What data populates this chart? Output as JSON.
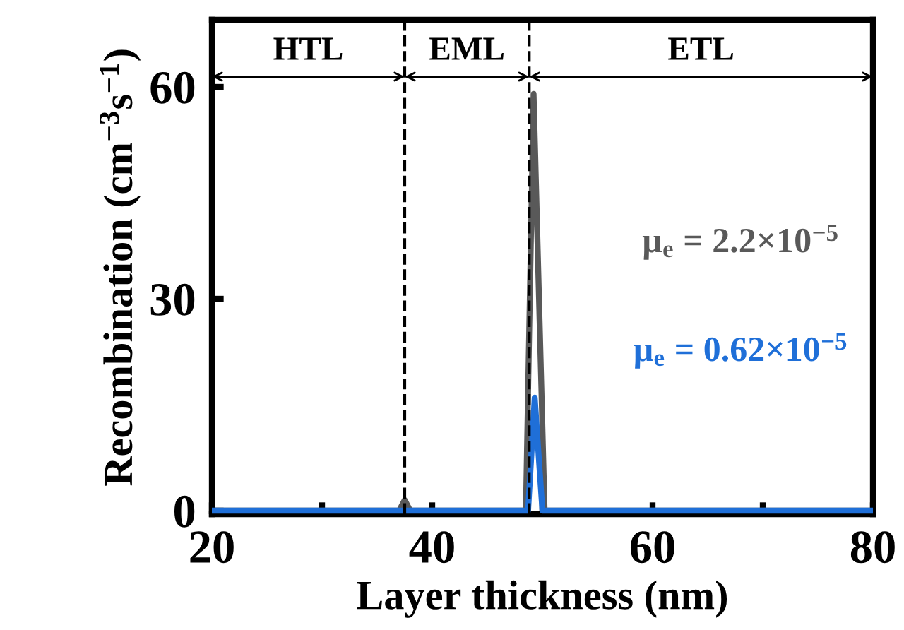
{
  "chart_data": {
    "type": "line",
    "xlabel": "Layer thickness (nm)",
    "ylabel": "Recombination (cm$^{−3}$s$^{−1}$)",
    "xlim": [
      20,
      80
    ],
    "ylim": [
      -0.5,
      69.5
    ],
    "xticks": [
      20,
      {
        "value": 30,
        "label": null
      },
      40,
      {
        "value": 50,
        "label": null
      },
      60,
      {
        "value": 70,
        "label": null
      },
      80
    ],
    "yticks": [
      0,
      30,
      60
    ],
    "grid": false,
    "legend": false,
    "marker": "none",
    "line_style": "solid",
    "series": [
      {
        "name": "μ$_{e}$ = 2.2×10$^{−5}$",
        "color": "#595959",
        "x": [
          20,
          37,
          37.5,
          38,
          48.5,
          49.2,
          50.2,
          80
        ],
        "values": [
          0,
          0,
          1.5,
          0,
          0,
          59,
          0,
          0
        ]
      },
      {
        "name": "μ$_{e}$ = 0.62×10$^{−5}$",
        "color": "#1f6fd8",
        "x": [
          20,
          48.7,
          49.3,
          50,
          80
        ],
        "values": [
          0,
          0,
          16,
          0,
          0
        ]
      }
    ],
    "ref_lines": [
      {
        "axis": "x",
        "value": 37.5,
        "line_style": "dashed",
        "color": "#000000"
      },
      {
        "axis": "x",
        "value": 48.8,
        "line_style": "dashed",
        "color": "#000000"
      }
    ],
    "annotations": [
      "HTL",
      "EML",
      "ETL"
    ]
  }
}
